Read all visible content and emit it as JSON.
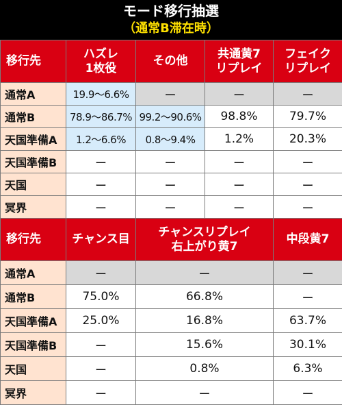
{
  "title": {
    "line1": "モード移行抽選",
    "line2": "（通常B滞在時）"
  },
  "table1": {
    "headers": [
      "移行先",
      "ハズレ\n1枚役",
      "その他",
      "共通黄7\nリプレイ",
      "フェイク\nリプレイ"
    ],
    "rows": [
      {
        "label": "通常A",
        "cells": [
          "19.9～6.6%",
          "ー",
          "ー",
          "ー"
        ]
      },
      {
        "label": "通常B",
        "cells": [
          "78.9～86.7%",
          "99.2～90.6%",
          "98.8%",
          "79.7%"
        ]
      },
      {
        "label": "天国準備A",
        "cells": [
          "1.2～6.6%",
          "0.8～9.4%",
          "1.2%",
          "20.3%"
        ]
      },
      {
        "label": "天国準備B",
        "cells": [
          "ー",
          "ー",
          "ー",
          "ー"
        ]
      },
      {
        "label": "天国",
        "cells": [
          "ー",
          "ー",
          "ー",
          "ー"
        ]
      },
      {
        "label": "冥界",
        "cells": [
          "ー",
          "ー",
          "ー",
          "ー"
        ]
      }
    ]
  },
  "table2": {
    "headers": [
      "移行先",
      "チャンス目",
      "チャンスリプレイ\n右上がり黄7",
      "中段黄7"
    ],
    "rows": [
      {
        "label": "通常A",
        "cells": [
          "ー",
          "ー",
          "ー"
        ]
      },
      {
        "label": "通常B",
        "cells": [
          "75.0%",
          "66.8%",
          "ー"
        ]
      },
      {
        "label": "天国準備A",
        "cells": [
          "25.0%",
          "16.8%",
          "63.7%"
        ]
      },
      {
        "label": "天国準備B",
        "cells": [
          "ー",
          "15.6%",
          "30.1%"
        ]
      },
      {
        "label": "天国",
        "cells": [
          "ー",
          "0.8%",
          "6.3%"
        ]
      },
      {
        "label": "冥界",
        "cells": [
          "ー",
          "ー",
          "ー"
        ]
      }
    ]
  },
  "colors": {
    "header_bg": "#d90012",
    "row_label_bg": "#ffe3d0",
    "gray_cell_bg": "#d8d8d8",
    "blue_cell_bg": "#d7ecfb",
    "subtitle": "#ffe100"
  }
}
